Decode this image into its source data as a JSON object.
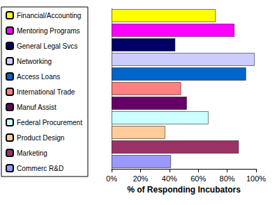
{
  "chart_data": {
    "type": "bar",
    "orientation": "horizontal",
    "x_label": "% of Responding Incubators",
    "categories": [
      "Financial/Accounting",
      "Mentoring Programs",
      "General Legal Svcs",
      "Networking",
      "Access Loans",
      "International Trade",
      "Manuf Assist",
      "Federal Procurement",
      "Product Design",
      "Marketing",
      "Commerc R&D"
    ],
    "values": [
      72,
      85,
      44,
      99,
      93,
      48,
      52,
      67,
      37,
      88,
      41
    ],
    "colors": [
      "#ffff00",
      "#ff00ff",
      "#000066",
      "#ccccff",
      "#0066cc",
      "#ff8080",
      "#660066",
      "#ccffff",
      "#ffcc99",
      "#993366",
      "#9999ff"
    ],
    "xlim": [
      0,
      100
    ],
    "xticks": [
      {
        "value": 0,
        "label": "0%"
      },
      {
        "value": 20,
        "label": "20%"
      },
      {
        "value": 40,
        "label": "40%"
      },
      {
        "value": 60,
        "label": "60%"
      },
      {
        "value": 80,
        "label": "80%"
      },
      {
        "value": 100,
        "label": "100%"
      }
    ],
    "grid": false,
    "legend": "left",
    "tick_labels": "x"
  }
}
